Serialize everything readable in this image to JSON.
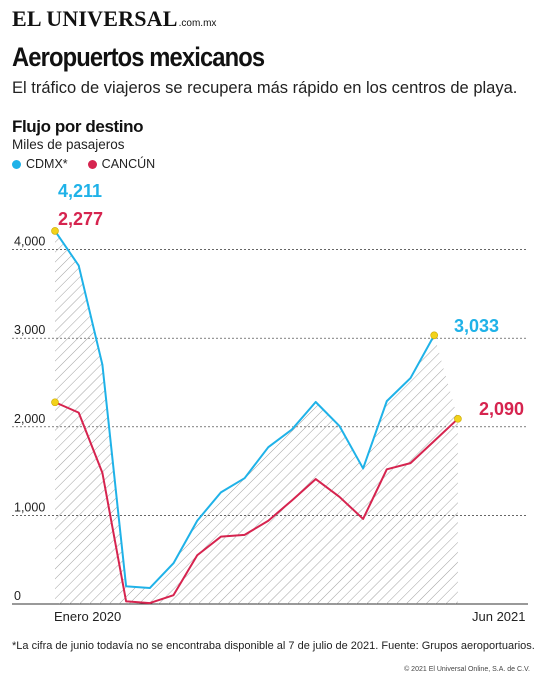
{
  "header": {
    "brand": "EL UNIVERSAL",
    "brand_domain": ".com.mx",
    "title": "Aeropuertos mexicanos",
    "subtitle": "El tráfico de viajeros se recupera más rápido en los centros de playa.",
    "section_title": "Flujo por destino",
    "units": "Miles de pasajeros"
  },
  "chart_data": {
    "type": "line",
    "title": "Flujo por destino",
    "ylabel": "Miles de pasajeros",
    "ylim": [
      0,
      4400
    ],
    "yticks": [
      0,
      1000,
      2000,
      3000,
      4000
    ],
    "ytick_labels": [
      "0",
      "1,000",
      "2,000",
      "3,000",
      "4,000"
    ],
    "x_labels": [
      "Enero 2020",
      "Jun 2021"
    ],
    "grid": true,
    "legend": "top-left",
    "series": [
      {
        "name": "CDMX*",
        "color": "#1fb2e8",
        "values": [
          4211,
          3820,
          2700,
          200,
          180,
          460,
          940,
          1260,
          1420,
          1770,
          1970,
          2280,
          2010,
          1530,
          2290,
          2550,
          3033
        ],
        "label_first": "4,211",
        "label_last": "3,033"
      },
      {
        "name": "CANCÚN",
        "color": "#d6244f",
        "values": [
          2277,
          2160,
          1480,
          30,
          10,
          100,
          550,
          760,
          780,
          940,
          1170,
          1410,
          1210,
          960,
          1520,
          1590,
          1840,
          2090
        ],
        "label_first": "2,277",
        "label_last": "2,090"
      }
    ]
  },
  "footnote": "*La cifra de junio todavía no se encontraba disponible al 7 de julio de 2021. Fuente: Grupos aeroportuarios.",
  "copyright": "© 2021 El Universal Online, S.A. de C.V."
}
